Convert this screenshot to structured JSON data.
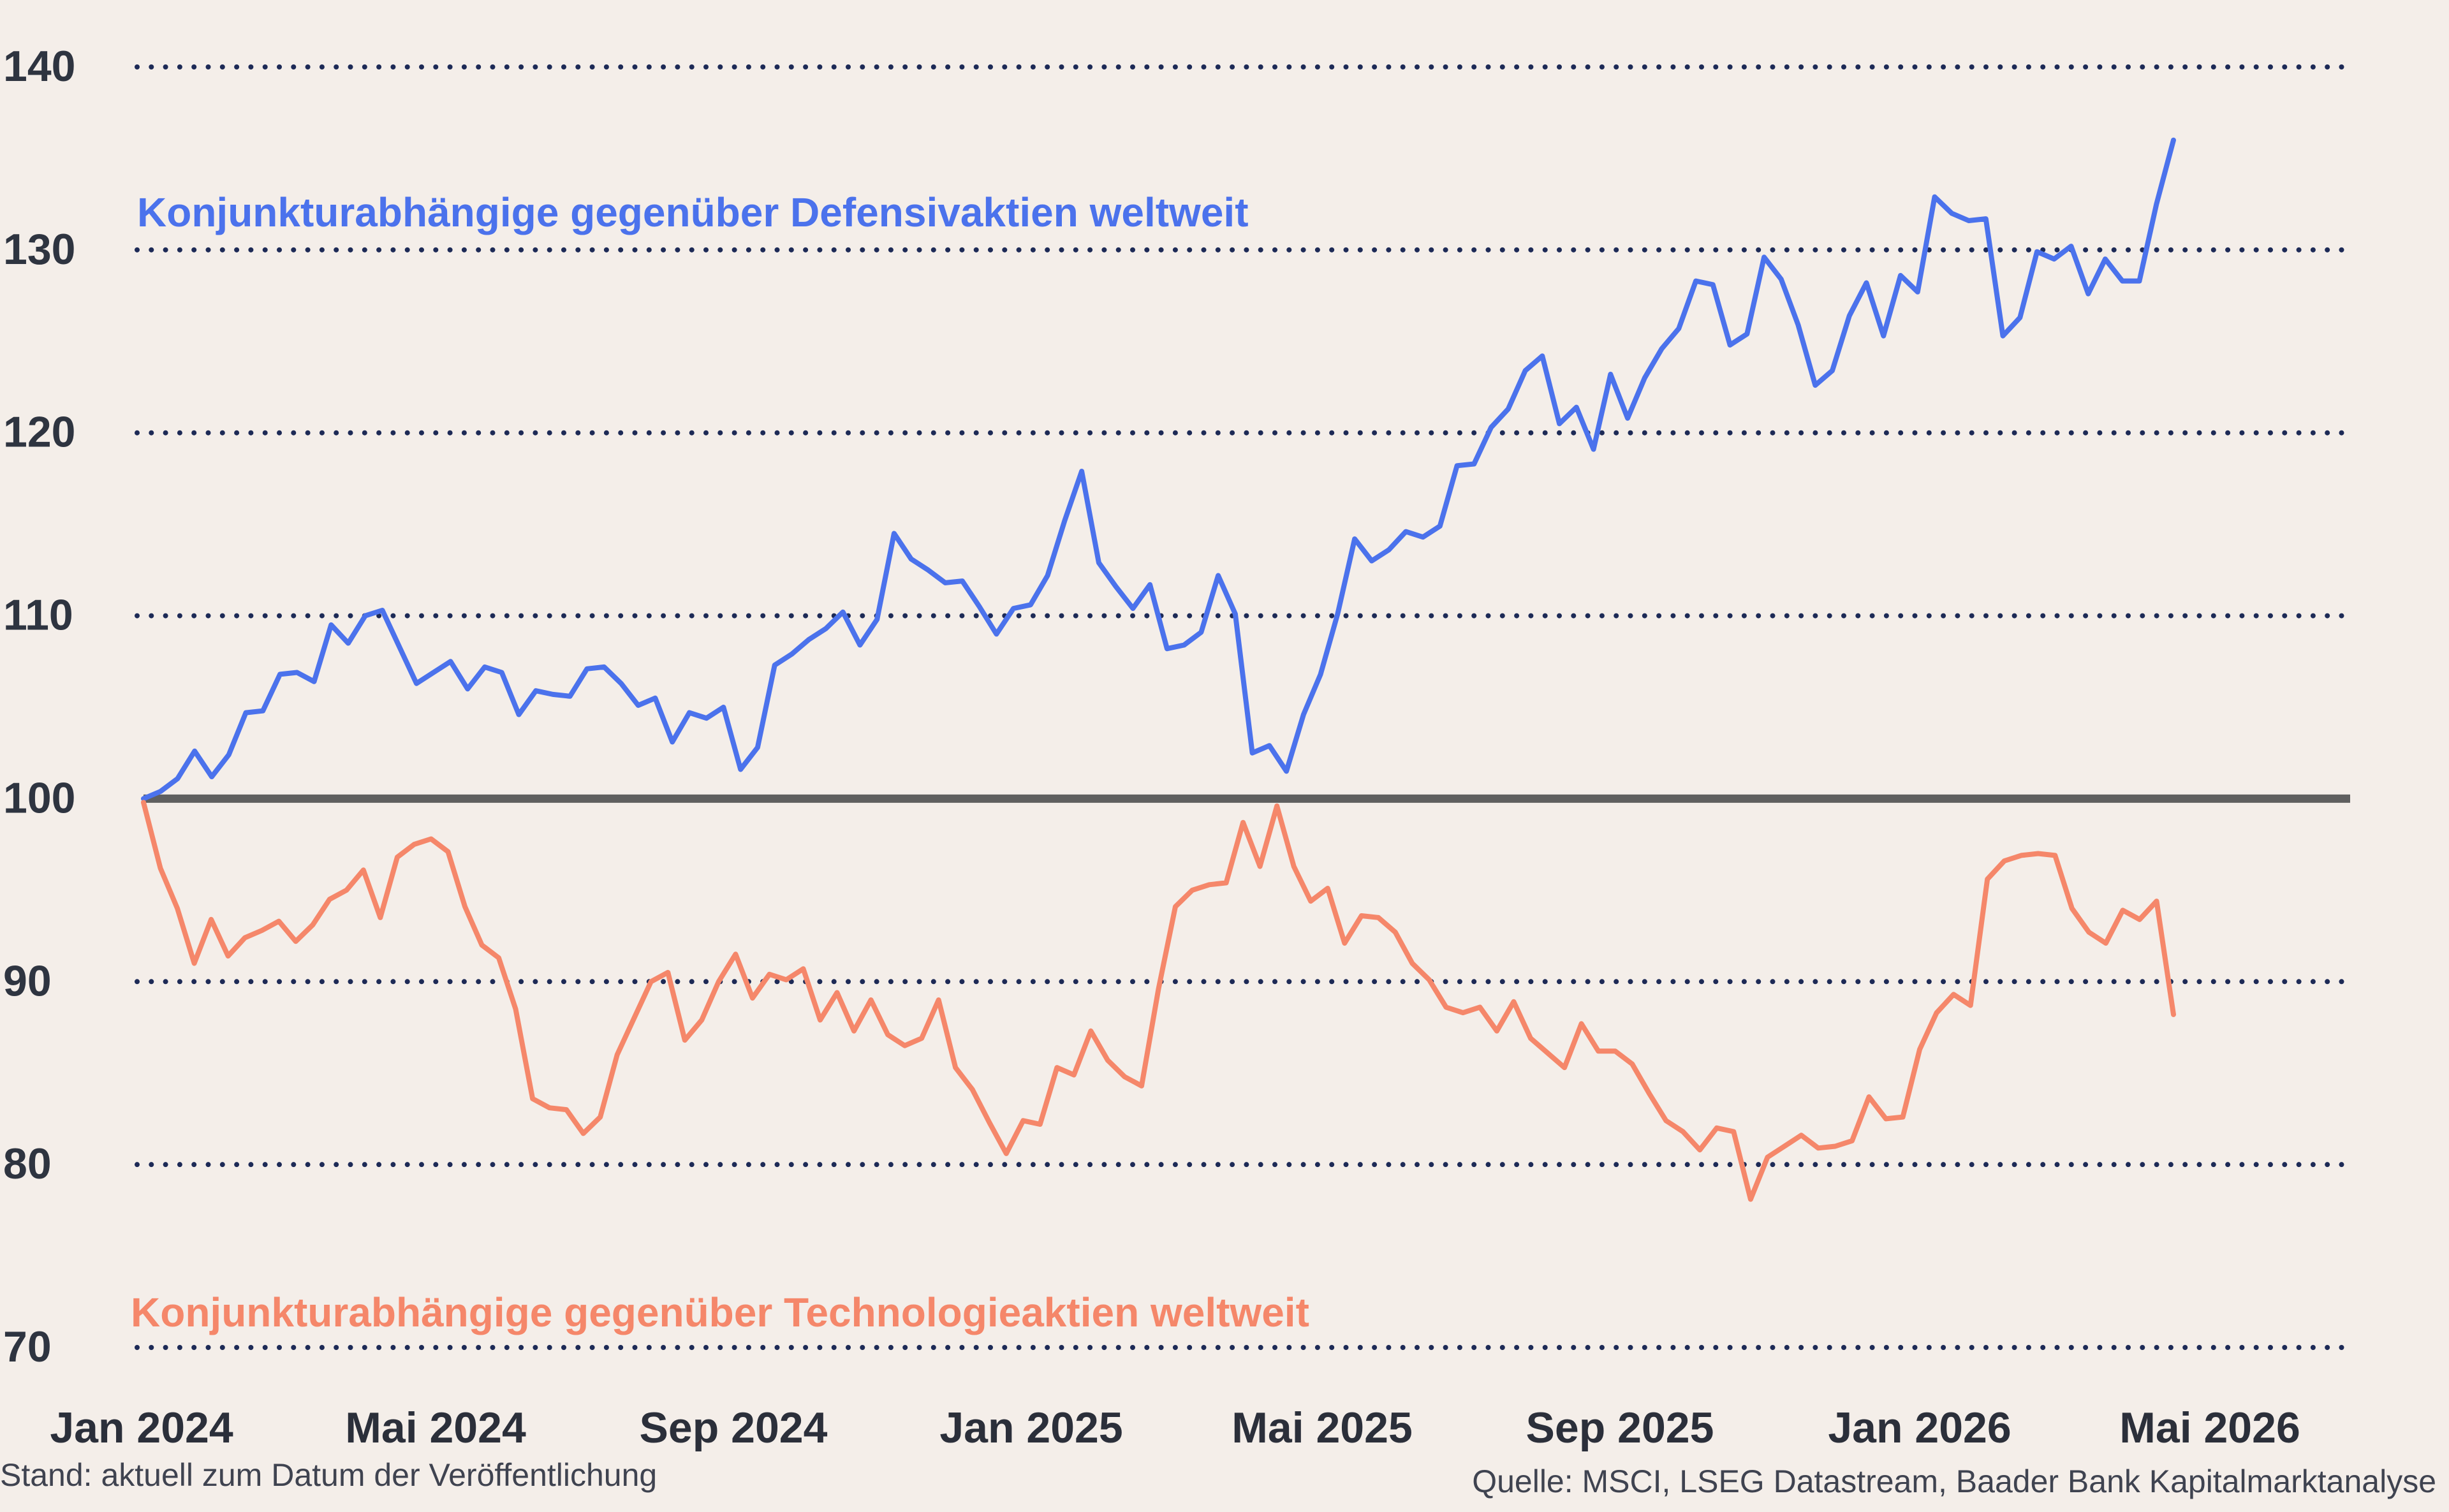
{
  "chart_data": {
    "type": "line",
    "title": "",
    "xlabel": "",
    "ylabel": "",
    "ylim": [
      70,
      140
    ],
    "yticks": [
      140,
      130,
      120,
      110,
      100,
      90,
      80,
      70
    ],
    "xticks": [
      "Jan 2024",
      "Mai 2024",
      "Sep 2024",
      "Jan 2025",
      "Mai 2025",
      "Sep 2025",
      "Jan 2026",
      "Mai 2026"
    ],
    "baseline": 100,
    "grid": "dotted horizontal",
    "colors": {
      "blue": "#4b72ec",
      "orange": "#f5876a",
      "baseline": "#5f5f5f",
      "grid": "#1d2a56"
    },
    "series": [
      {
        "name": "Konjunkturabhängige gegenüber Defensivaktien weltweit",
        "color": "#4b72ec",
        "values": [
          100.0,
          100.4,
          101.1,
          102.6,
          101.2,
          102.4,
          104.7,
          104.8,
          106.8,
          106.9,
          106.4,
          109.5,
          108.5,
          110.0,
          110.3,
          108.3,
          106.3,
          106.9,
          107.5,
          106.0,
          107.2,
          106.9,
          104.6,
          105.9,
          105.7,
          105.6,
          107.1,
          107.2,
          106.3,
          105.1,
          105.5,
          103.1,
          104.7,
          104.4,
          105.0,
          101.6,
          102.8,
          107.3,
          107.9,
          108.7,
          109.3,
          110.2,
          108.4,
          109.8,
          114.5,
          113.1,
          112.5,
          111.8,
          111.9,
          110.5,
          109.0,
          110.4,
          110.6,
          112.2,
          115.2,
          117.9,
          112.9,
          111.6,
          110.4,
          111.7,
          108.2,
          108.4,
          109.1,
          112.2,
          110.1,
          102.5,
          102.9,
          101.5,
          104.6,
          106.8,
          110.1,
          114.2,
          113.0,
          113.6,
          114.6,
          114.3,
          114.9,
          118.2,
          118.3,
          120.3,
          121.3,
          123.4,
          124.2,
          120.5,
          121.4,
          119.1,
          123.2,
          120.8,
          123.0,
          124.6,
          125.7,
          128.3,
          128.1,
          124.8,
          125.4,
          129.6,
          128.4,
          125.9,
          122.6,
          123.4,
          126.4,
          128.2,
          125.3,
          128.6,
          127.7,
          132.9,
          132.0,
          131.6,
          131.7,
          125.3,
          126.3,
          129.9,
          129.5,
          130.2,
          127.6,
          129.5,
          128.3,
          128.3,
          132.5,
          136.0
        ]
      },
      {
        "name": "Konjunkturabhängige gegenüber Technologieaktien weltweit",
        "color": "#f5876a",
        "values": [
          99.8,
          96.2,
          94.0,
          91.0,
          93.4,
          91.4,
          92.4,
          92.8,
          93.3,
          92.2,
          93.1,
          94.5,
          95.0,
          96.1,
          93.5,
          96.8,
          97.5,
          97.8,
          97.1,
          94.1,
          92.0,
          91.3,
          88.5,
          83.6,
          83.1,
          83.0,
          81.7,
          82.6,
          86.0,
          88.0,
          90.0,
          90.5,
          86.8,
          87.9,
          90.0,
          91.5,
          89.1,
          90.4,
          90.1,
          90.7,
          87.9,
          89.4,
          87.3,
          89.0,
          87.1,
          86.5,
          86.9,
          89.0,
          85.3,
          84.1,
          82.3,
          80.6,
          82.4,
          82.2,
          85.3,
          84.9,
          87.3,
          85.7,
          84.8,
          84.3,
          89.6,
          94.1,
          95.0,
          95.3,
          95.4,
          98.7,
          96.3,
          99.6,
          96.3,
          94.4,
          95.1,
          92.1,
          93.6,
          93.5,
          92.7,
          91.0,
          90.1,
          88.6,
          88.3,
          88.6,
          87.3,
          88.9,
          86.9,
          86.1,
          85.3,
          87.7,
          86.2,
          86.2,
          85.5,
          83.9,
          82.4,
          81.8,
          80.8,
          82.0,
          81.8,
          78.1,
          80.4,
          81.0,
          81.6,
          80.9,
          81.0,
          81.3,
          83.7,
          82.5,
          82.6,
          86.3,
          88.3,
          89.3,
          88.7,
          95.6,
          96.6,
          96.9,
          97.0,
          96.9,
          94.0,
          92.7,
          92.1,
          93.9,
          93.4,
          94.4,
          88.2
        ]
      }
    ]
  },
  "labels": {
    "blue_series": "Konjunkturabhängige gegenüber Defensivaktien weltweit",
    "orange_series": "Konjunkturabhängige gegenüber Technologieaktien weltweit"
  },
  "footer": {
    "left": "Stand: aktuell zum Datum der Veröffentlichung",
    "right": "Quelle: MSCI, LSEG Datastream, Baader Bank Kapitalmarktanalyse"
  }
}
